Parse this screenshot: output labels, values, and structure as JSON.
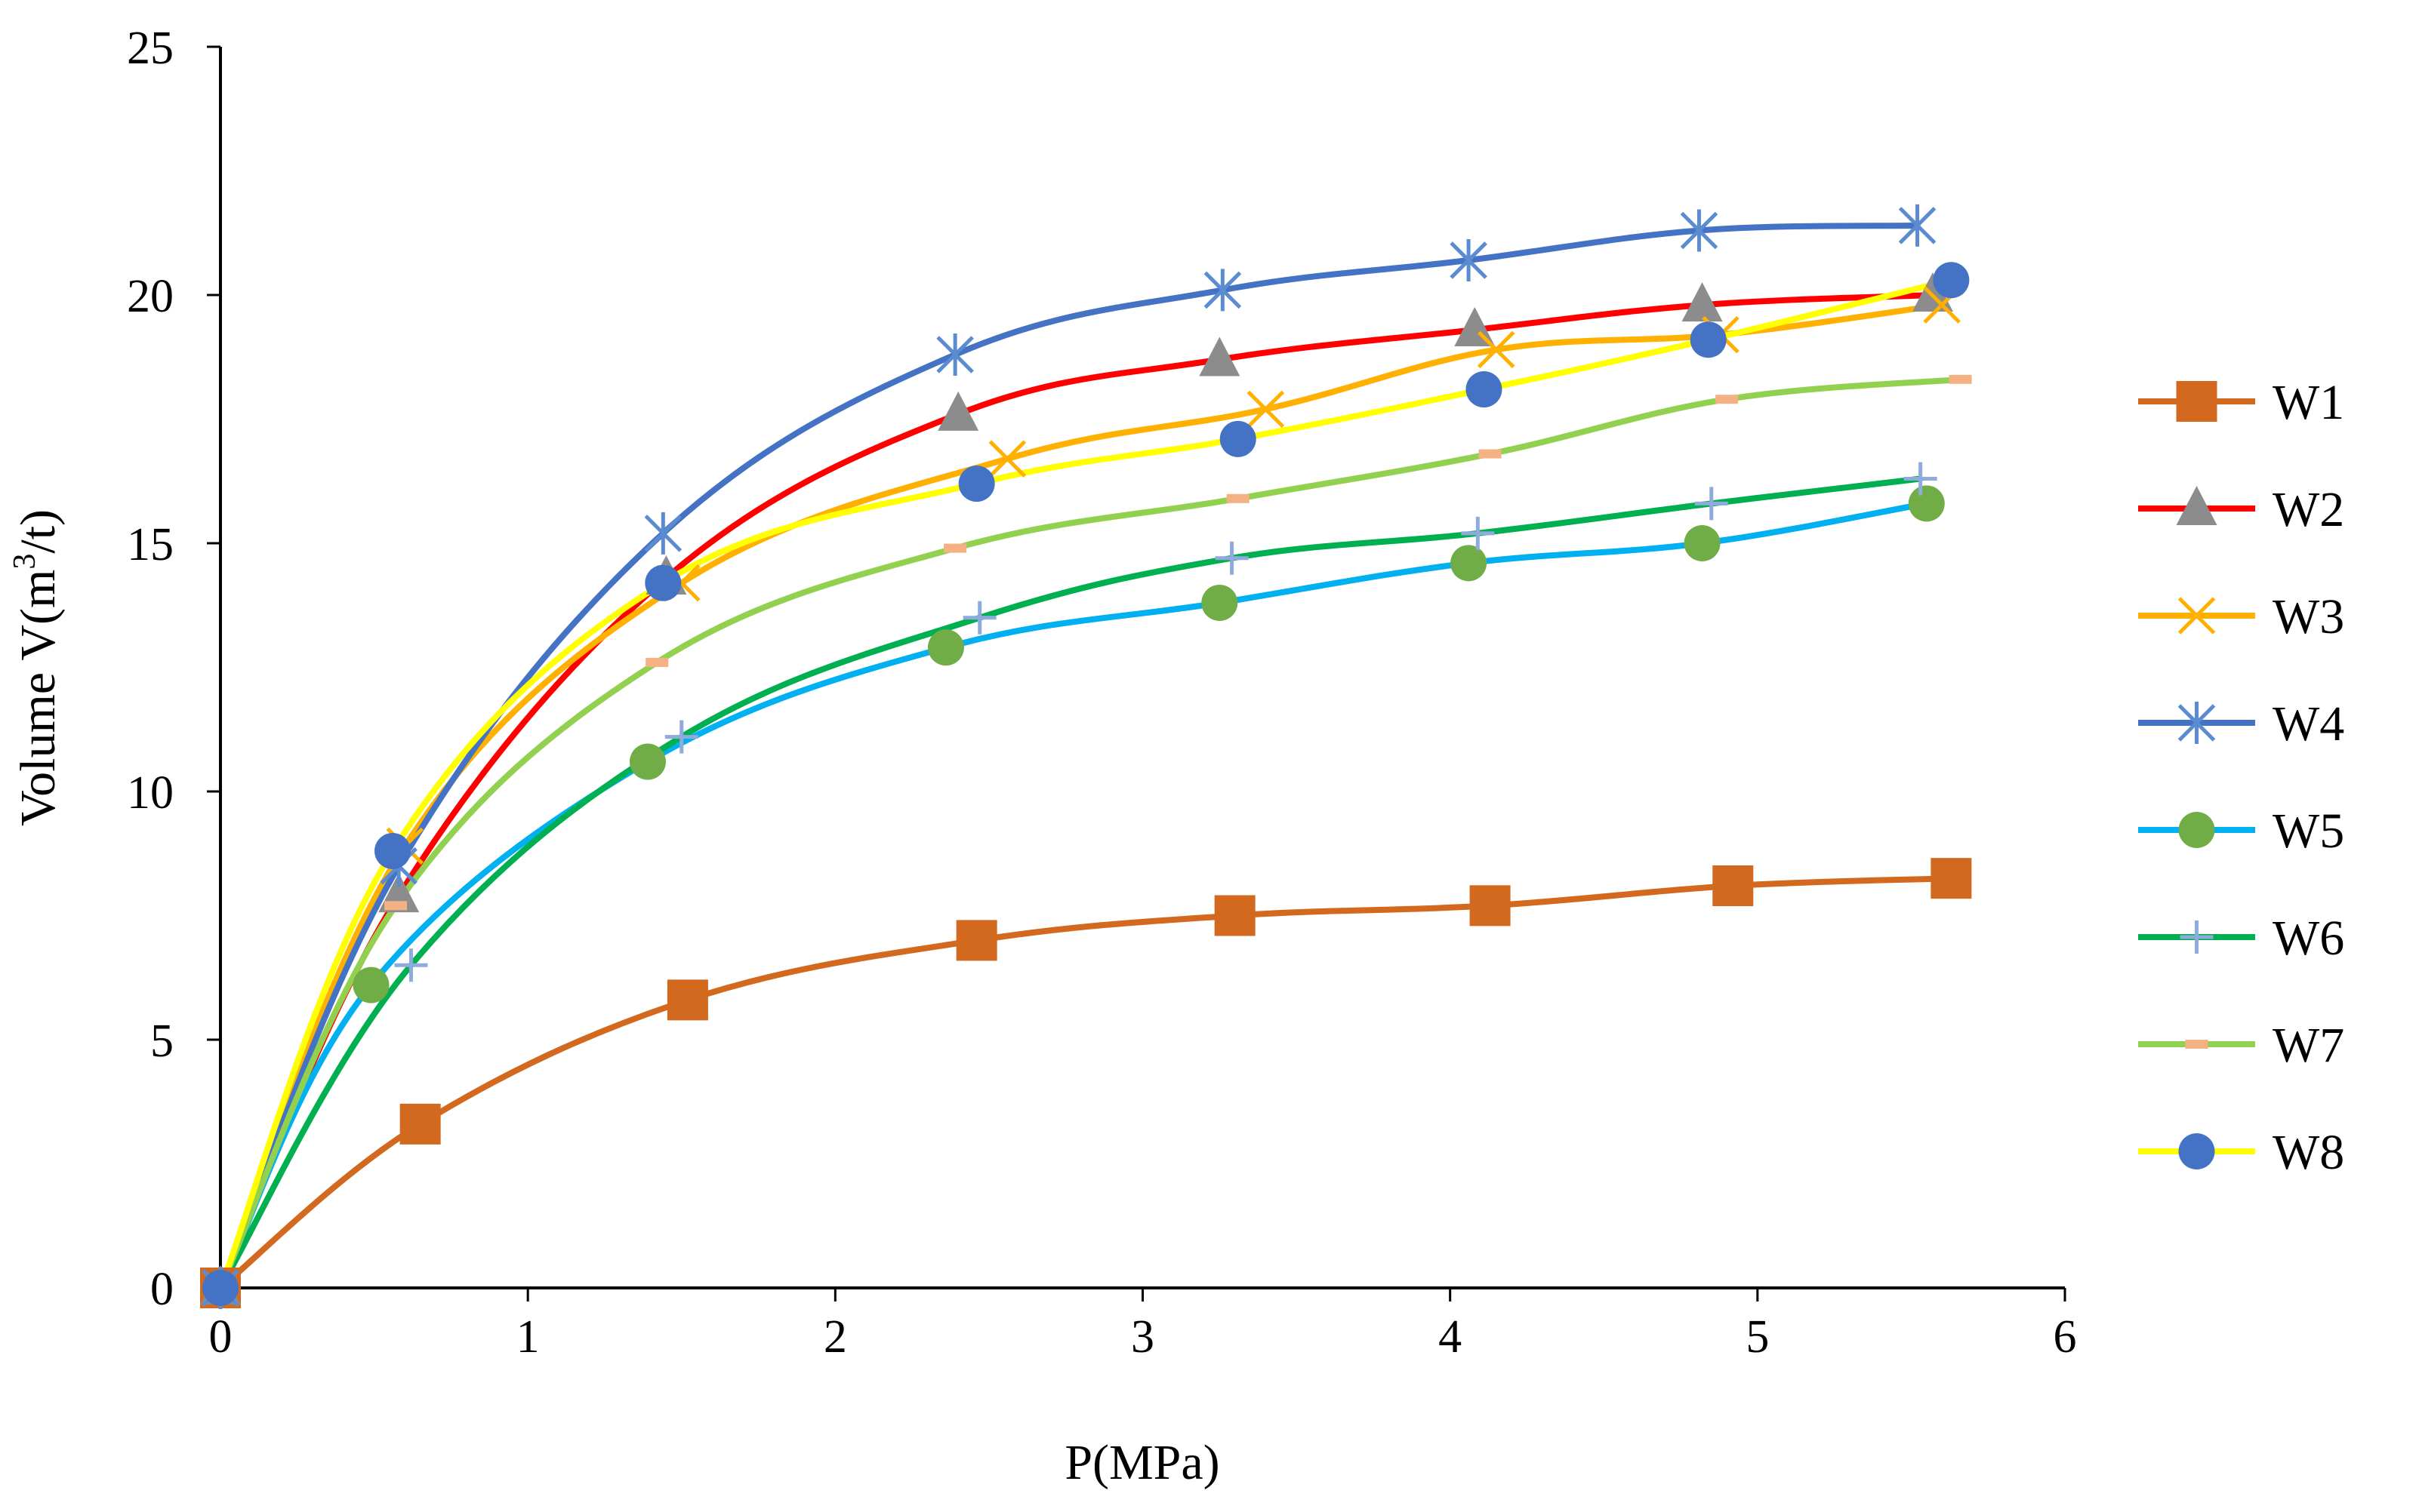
{
  "chart_data": {
    "type": "line",
    "smooth": true,
    "xlabel": "P(MPa)",
    "ylabel_main": "Volume V(m",
    "ylabel_sup": "3",
    "ylabel_tail": "/t)",
    "xlim": [
      0,
      6
    ],
    "ylim": [
      0,
      25
    ],
    "xticks": [
      0,
      1,
      2,
      3,
      4,
      5,
      6
    ],
    "yticks": [
      0,
      5,
      10,
      15,
      20,
      25
    ],
    "grid": false,
    "legend_position": "right",
    "series": [
      {
        "name": "W1",
        "color": "#D2691E",
        "marker": "square",
        "x": [
          0,
          0.65,
          1.52,
          2.46,
          3.3,
          4.13,
          4.92,
          5.63
        ],
        "y": [
          0,
          3.3,
          5.8,
          7.0,
          7.5,
          7.7,
          8.1,
          8.25
        ]
      },
      {
        "name": "W2",
        "color": "#FF0000",
        "marker": "triangle",
        "marker_color": "#8C8C8C",
        "x": [
          0,
          0.58,
          1.45,
          2.4,
          3.25,
          4.08,
          4.82,
          5.57
        ],
        "y": [
          0,
          7.9,
          14.3,
          17.6,
          18.7,
          19.3,
          19.8,
          20.0
        ]
      },
      {
        "name": "W3",
        "color": "#FFB000",
        "marker": "x",
        "x": [
          0,
          0.6,
          1.5,
          2.56,
          3.4,
          4.15,
          4.88,
          5.6
        ],
        "y": [
          0,
          8.9,
          14.2,
          16.7,
          17.7,
          18.9,
          19.2,
          19.8
        ]
      },
      {
        "name": "W4",
        "color": "#4472C4",
        "marker": "asterisk",
        "marker_color": "#5B8BD0",
        "x": [
          0,
          0.58,
          1.44,
          2.39,
          3.26,
          4.06,
          4.81,
          5.52
        ],
        "y": [
          0,
          8.5,
          15.2,
          18.8,
          20.1,
          20.7,
          21.3,
          21.4
        ]
      },
      {
        "name": "W5",
        "color": "#00B0F0",
        "marker": "circle",
        "marker_color": "#70AD47",
        "x": [
          0,
          0.49,
          1.39,
          2.36,
          3.25,
          4.06,
          4.82,
          5.55
        ],
        "y": [
          0,
          6.1,
          10.6,
          12.9,
          13.8,
          14.6,
          15.0,
          15.8
        ]
      },
      {
        "name": "W6",
        "color": "#00B050",
        "marker": "plus",
        "marker_color": "#8FAADC",
        "x": [
          0,
          0.62,
          1.5,
          2.47,
          3.29,
          4.09,
          4.85,
          5.53
        ],
        "y": [
          0,
          6.5,
          11.1,
          13.5,
          14.7,
          15.2,
          15.8,
          16.3
        ]
      },
      {
        "name": "W7",
        "color": "#92D050",
        "marker": "dash",
        "marker_color": "#F4B183",
        "x": [
          0,
          0.57,
          1.42,
          2.39,
          3.31,
          4.13,
          4.9,
          5.66
        ],
        "y": [
          0,
          7.7,
          12.6,
          14.9,
          15.9,
          16.8,
          17.9,
          18.3
        ]
      },
      {
        "name": "W8",
        "color": "#FFFF00",
        "marker": "circle",
        "marker_color": "#4472C4",
        "x": [
          0,
          0.56,
          1.44,
          2.46,
          3.31,
          4.11,
          4.84,
          5.63
        ],
        "y": [
          0,
          8.8,
          14.2,
          16.2,
          17.1,
          18.1,
          19.1,
          20.3
        ]
      }
    ]
  }
}
